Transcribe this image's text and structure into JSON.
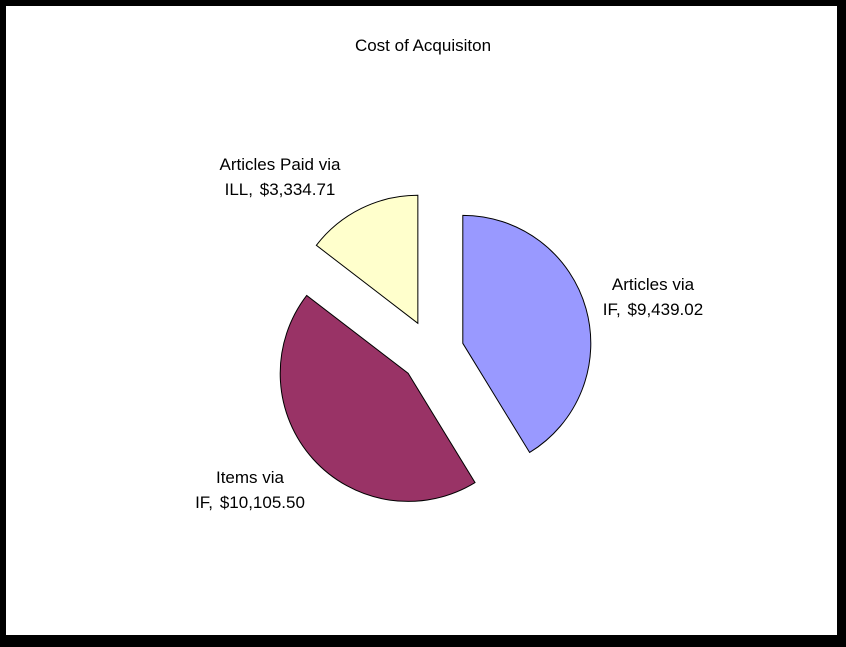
{
  "chart_data": {
    "type": "pie",
    "title": "Cost of Acquisiton",
    "categories": [
      "Articles via IF,",
      "Items via IF,",
      "Articles Paid via ILL,"
    ],
    "values": [
      9439.02,
      10105.5,
      3334.71
    ],
    "value_labels": [
      "$9,439.02",
      "$10,105.50",
      "$3,334.71"
    ],
    "colors": [
      "#9999ff",
      "#993366",
      "#ffffcc"
    ],
    "exploded": true
  }
}
